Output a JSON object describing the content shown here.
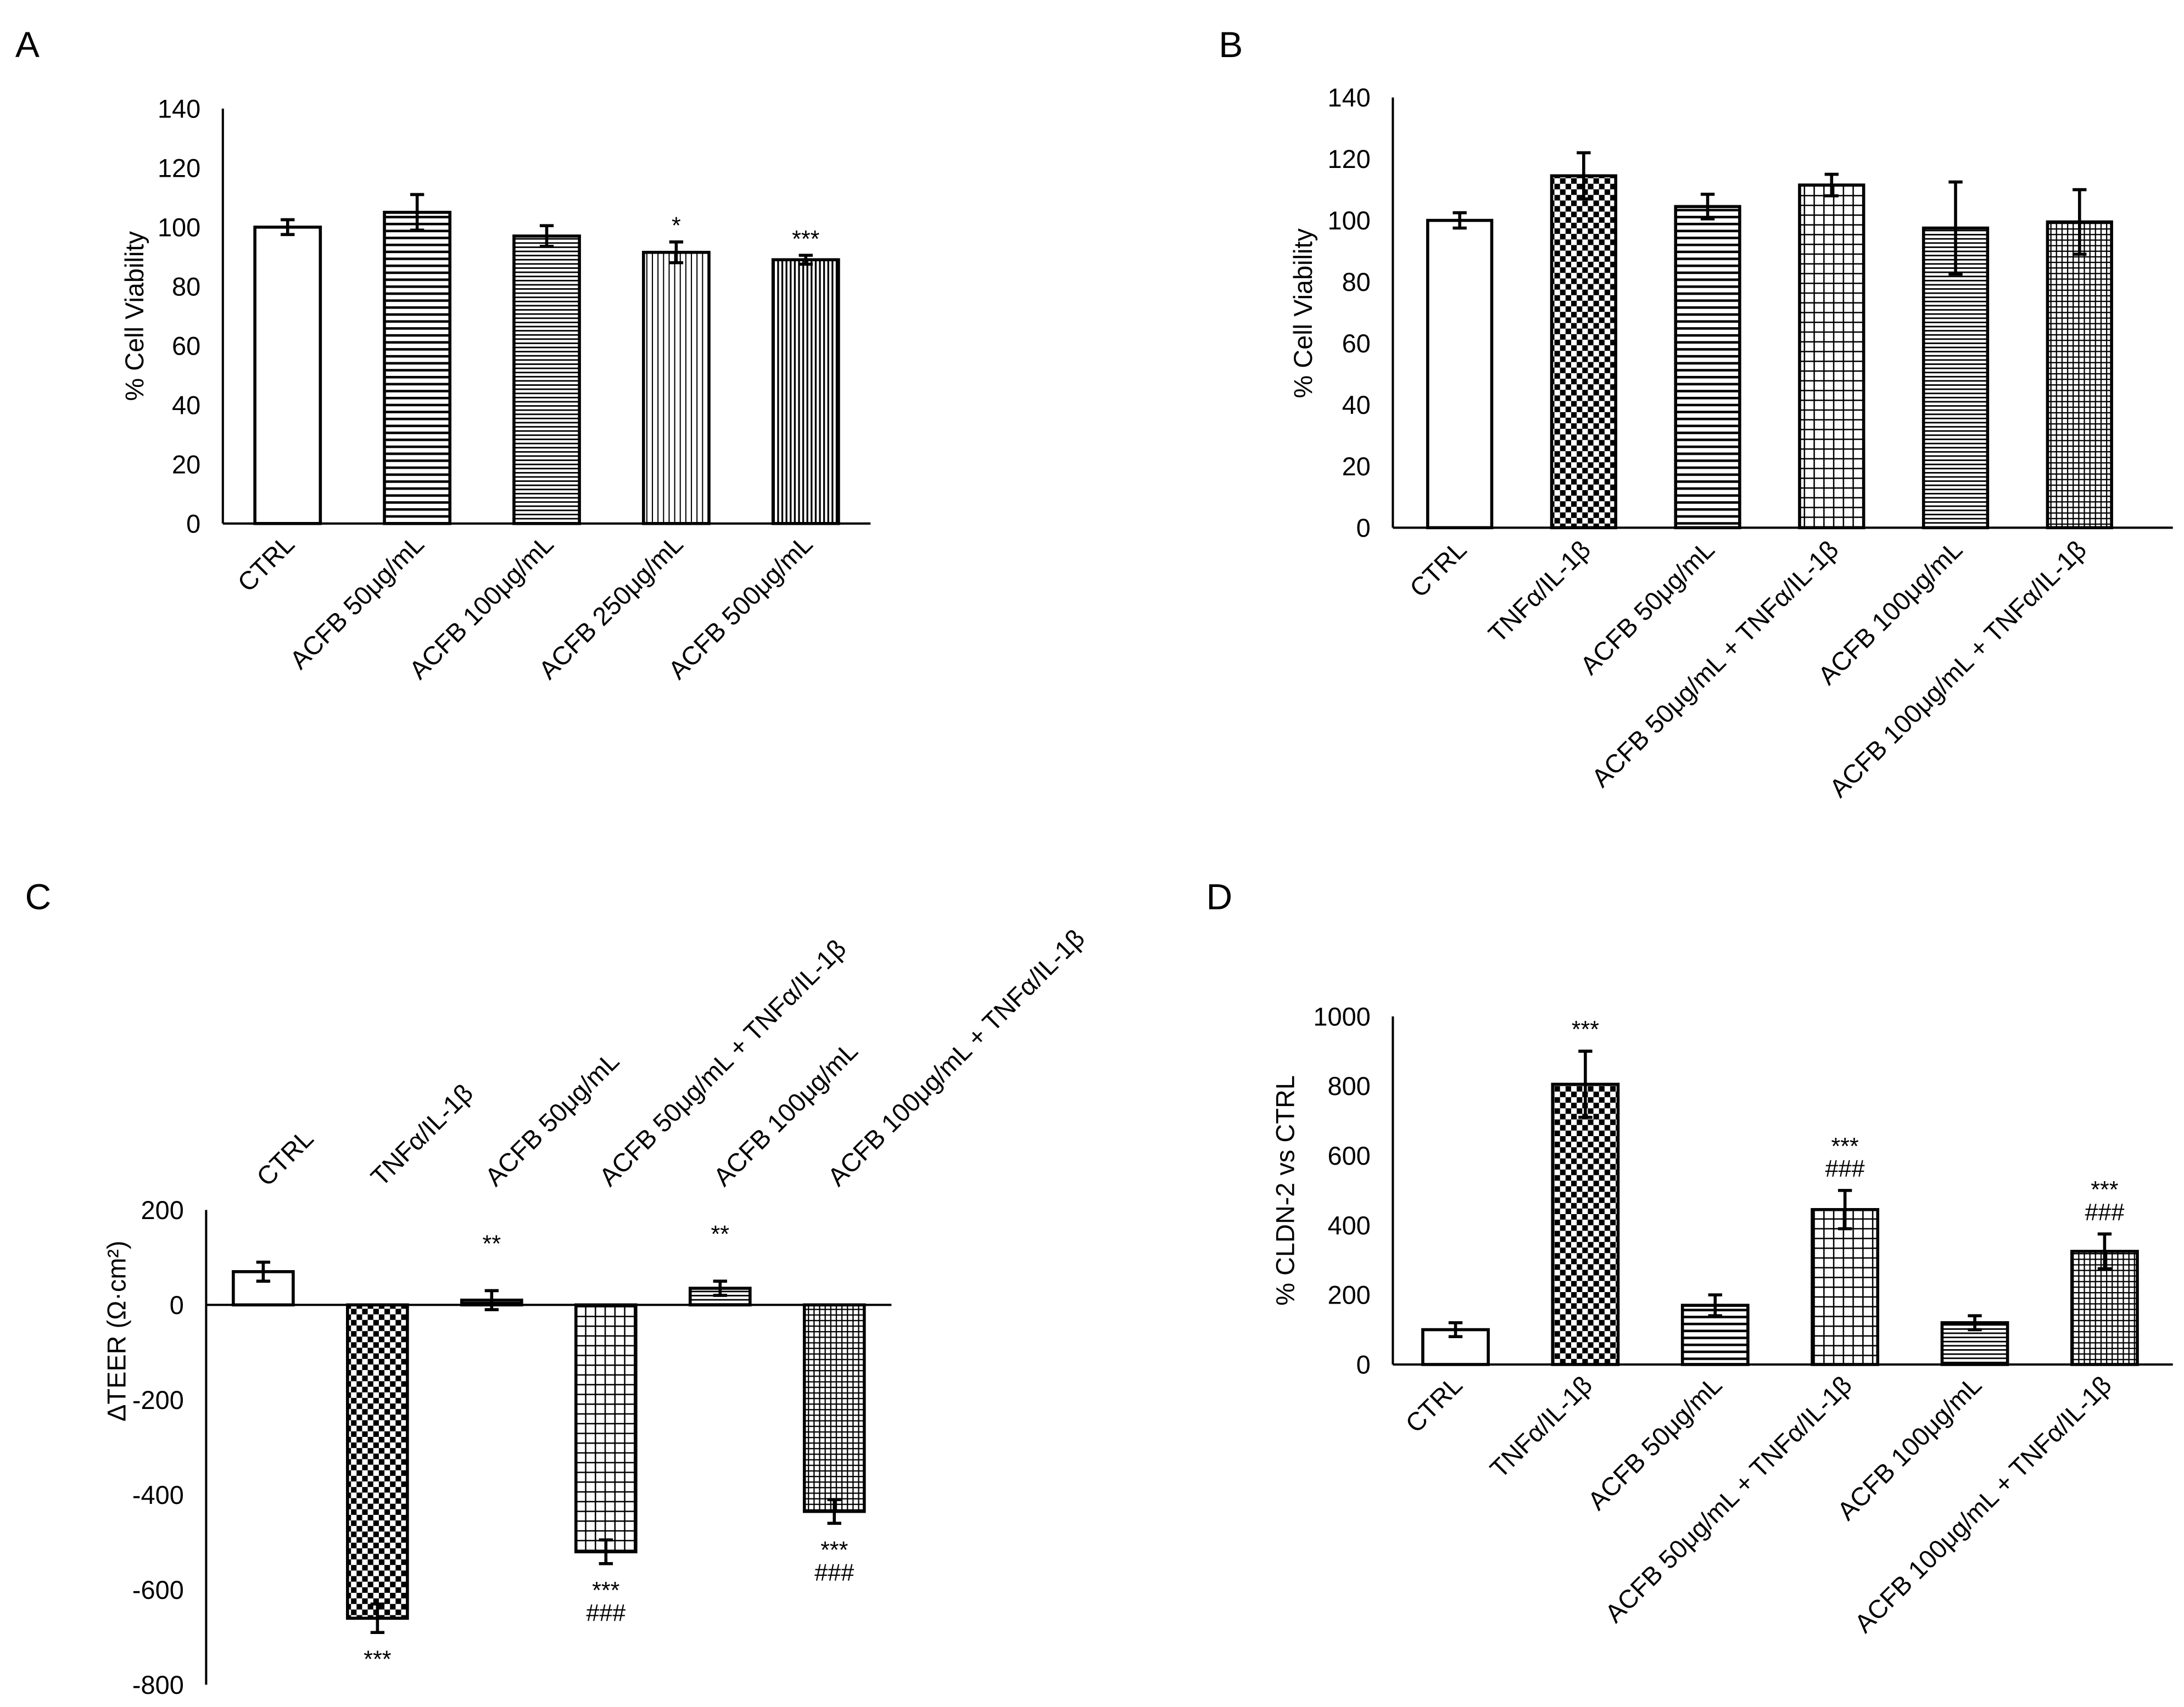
{
  "chart_data": [
    {
      "panel": "A",
      "type": "bar",
      "ylabel": "% Cell Viability",
      "ylim": [
        0,
        140
      ],
      "yticks": [
        0,
        20,
        40,
        60,
        80,
        100,
        120,
        140
      ],
      "categories": [
        "CTRL",
        "ACFB 50μg/mL",
        "ACFB 100μg/mL",
        "ACFB 250μg/mL",
        "ACFB 500μg/mL"
      ],
      "values": [
        100,
        105,
        97,
        91.5,
        89
      ],
      "errors": [
        2.5,
        6,
        3.5,
        3.5,
        1.5
      ],
      "annotations": [
        [],
        [],
        [],
        [
          "*"
        ],
        [
          "***"
        ]
      ]
    },
    {
      "panel": "B",
      "type": "bar",
      "ylabel": "% Cell Viability",
      "ylim": [
        0,
        140
      ],
      "yticks": [
        0,
        20,
        40,
        60,
        80,
        100,
        120,
        140
      ],
      "categories": [
        "CTRL",
        "TNFα/IL-1β",
        "ACFB 50μg/mL",
        "ACFB 50μg/mL + TNFα/IL-1β",
        "ACFB 100μg/mL",
        "ACFB 100μg/mL + TNFα/IL-1β"
      ],
      "values": [
        100,
        114.5,
        104.5,
        111.5,
        97.5,
        99.5
      ],
      "errors": [
        2.5,
        7.5,
        4,
        3.5,
        15,
        10.5
      ],
      "annotations": [
        [],
        [],
        [],
        [],
        [],
        []
      ]
    },
    {
      "panel": "C",
      "type": "bar",
      "ylabel": "ΔTEER (Ω·cm²)",
      "ylim": [
        -800,
        200
      ],
      "yticks": [
        -800,
        -600,
        -400,
        -200,
        0,
        200
      ],
      "categories": [
        "CTRL",
        "TNFα/IL-1β",
        "ACFB 50μg/mL",
        "ACFB 50μg/mL + TNFα/IL-1β",
        "ACFB 100μg/mL",
        "ACFB 100μg/mL + TNFα/IL-1β"
      ],
      "values": [
        70,
        -660,
        10,
        -520,
        35,
        -435
      ],
      "errors": [
        20,
        30,
        20,
        25,
        15,
        25
      ],
      "annotations": [
        [],
        [
          "***"
        ],
        [
          "**"
        ],
        [
          "***",
          "###"
        ],
        [
          "**"
        ],
        [
          "***",
          "###"
        ]
      ]
    },
    {
      "panel": "D",
      "type": "bar",
      "ylabel": "% CLDN-2 vs CTRL",
      "ylim": [
        0,
        1000
      ],
      "yticks": [
        0,
        200,
        400,
        600,
        800,
        1000
      ],
      "categories": [
        "CTRL",
        "TNFα/IL-1β",
        "ACFB 50μg/mL",
        "ACFB 50μg/mL + TNFα/IL-1β",
        "ACFB 100μg/mL",
        "ACFB 100μg/mL + TNFα/IL-1β"
      ],
      "values": [
        100,
        805,
        170,
        445,
        120,
        325
      ],
      "errors": [
        20,
        95,
        30,
        55,
        20,
        50
      ],
      "annotations": [
        [],
        [
          "***"
        ],
        [],
        [
          "***",
          "###"
        ],
        [],
        [
          "***",
          "###"
        ]
      ]
    }
  ]
}
